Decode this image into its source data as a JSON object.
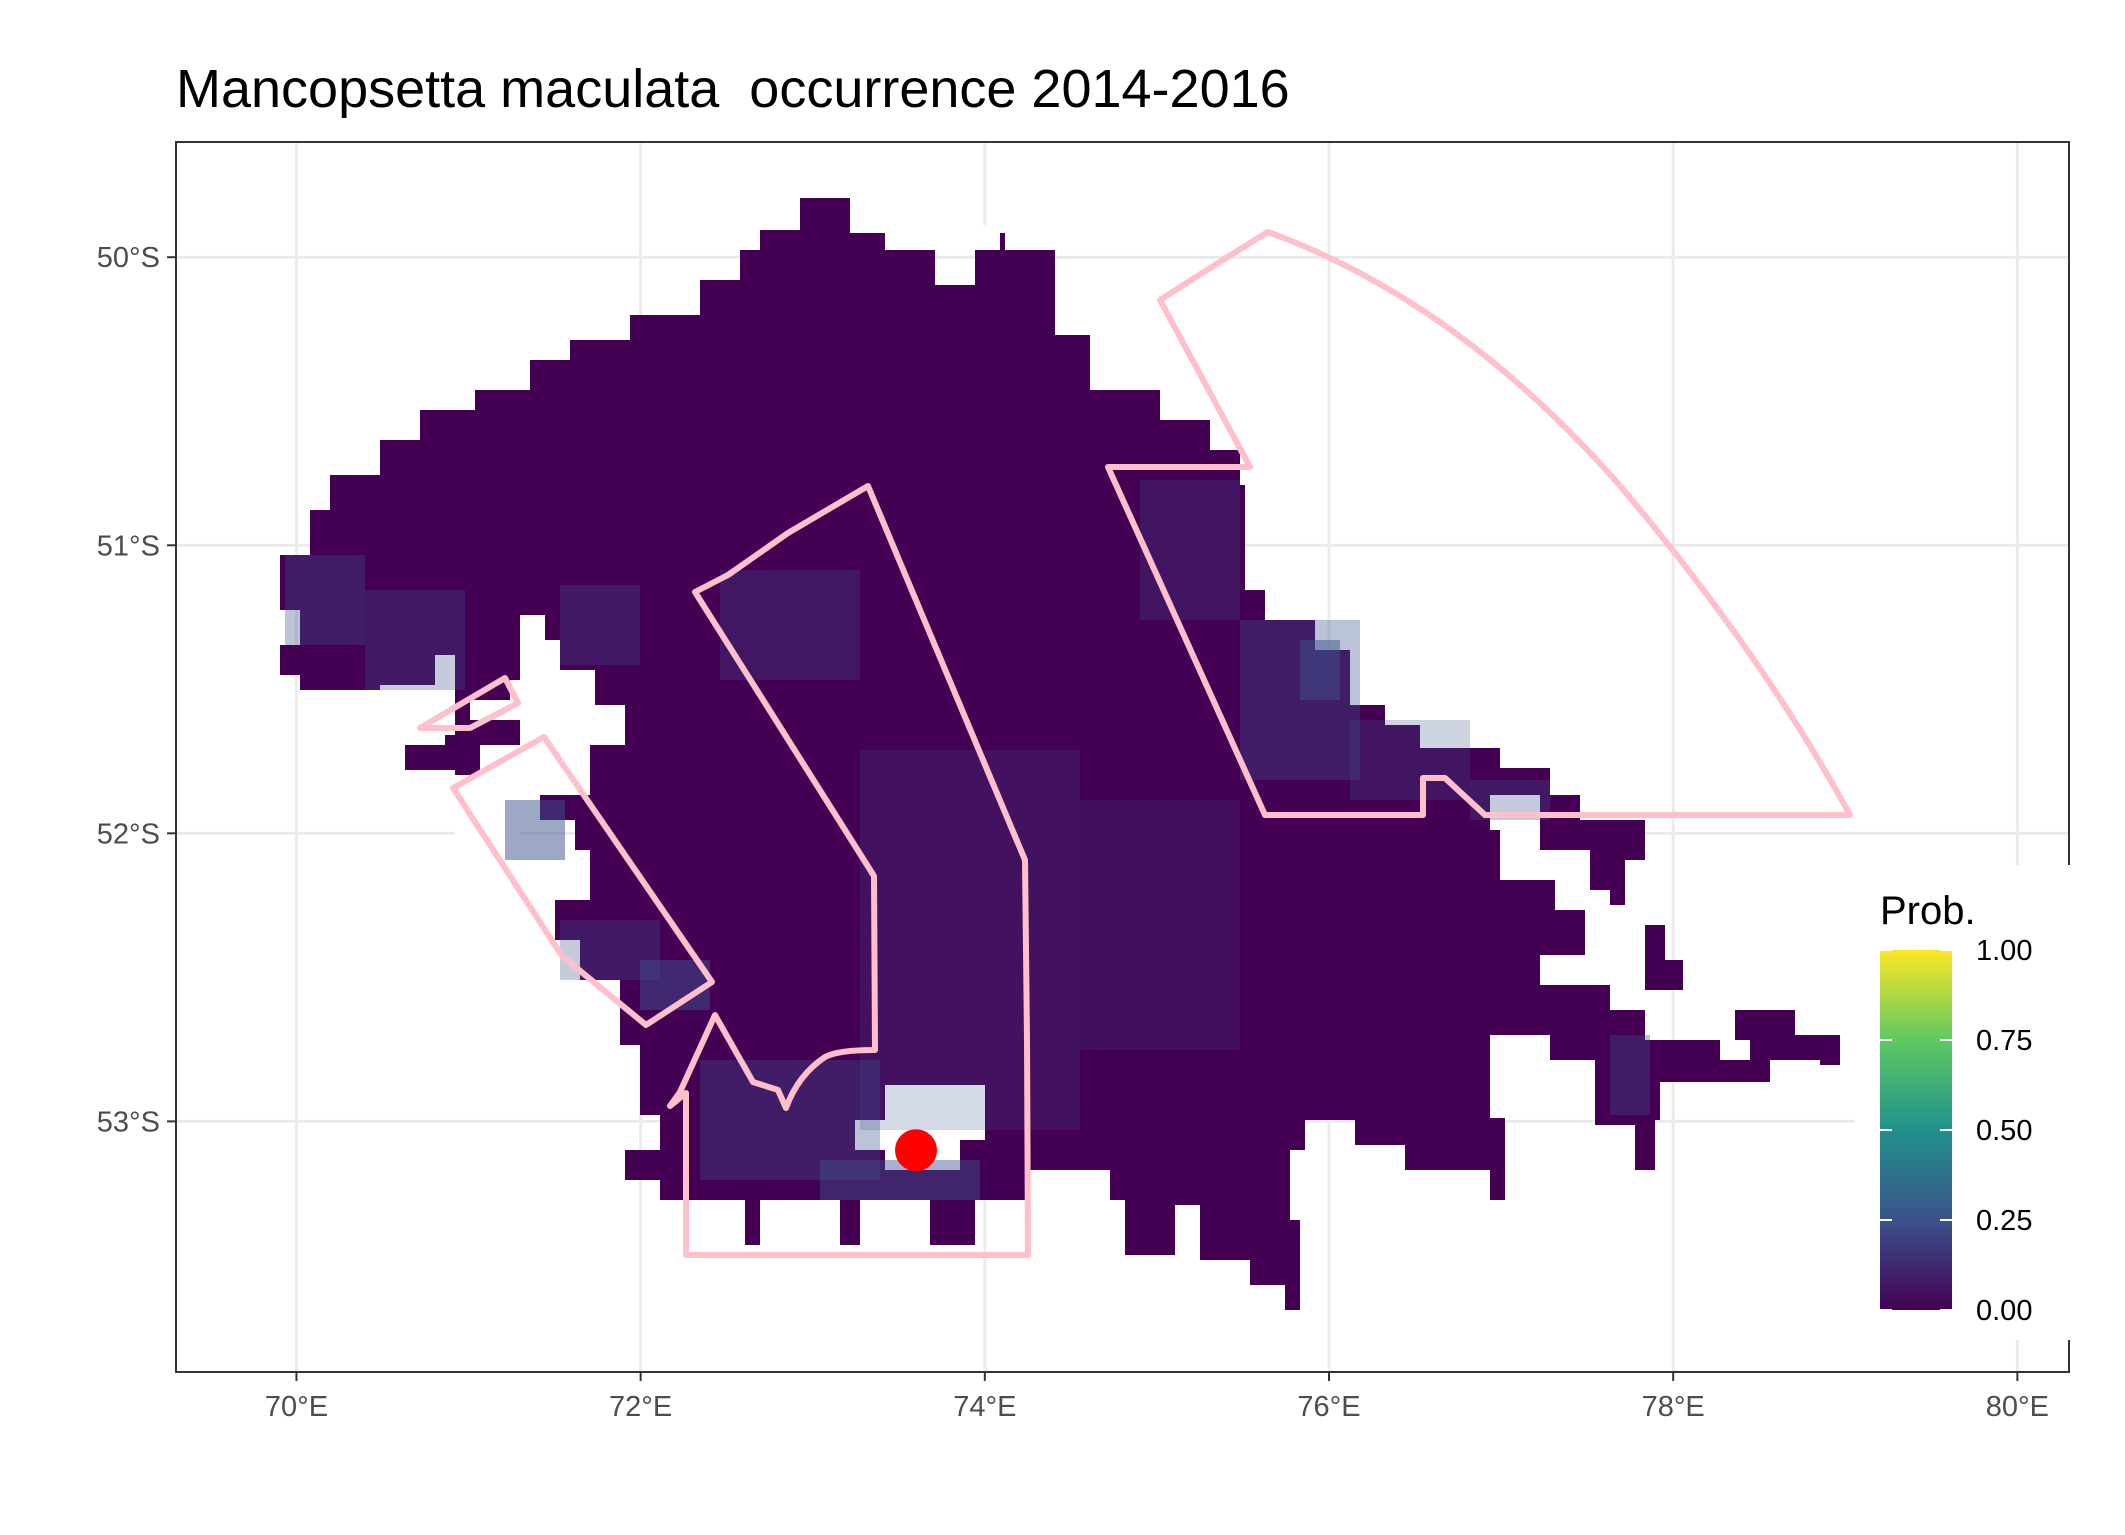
{
  "title": "Mancopsetta maculata  occurrence 2014-2016",
  "map": {
    "lon_range": [
      69.3,
      80.3
    ],
    "lat_range": [
      -53.87,
      -49.6
    ],
    "grid": true,
    "x_ticks": [
      {
        "value": 70,
        "label": "70°E"
      },
      {
        "value": 72,
        "label": "72°E"
      },
      {
        "value": 74,
        "label": "74°E"
      },
      {
        "value": 76,
        "label": "76°E"
      },
      {
        "value": 78,
        "label": "78°E"
      },
      {
        "value": 80,
        "label": "80°E"
      }
    ],
    "y_ticks": [
      {
        "value": -50,
        "label": "50°S"
      },
      {
        "value": -51,
        "label": "51°S"
      },
      {
        "value": -52,
        "label": "52°S"
      },
      {
        "value": -53,
        "label": "53°S"
      }
    ],
    "raster_fill_color": "#440154",
    "outline_color": "#ffc0cb",
    "point_color": "#ff0000",
    "occurrence_point": {
      "lon": 73.6,
      "lat": -53.1
    }
  },
  "legend": {
    "title": "Prob.",
    "position": "bottom-right",
    "colors": [
      "#440154",
      "#3b528b",
      "#21918c",
      "#5ec962",
      "#fde725"
    ],
    "labels": [
      "1.00",
      "0.75",
      "0.50",
      "0.25",
      "0.00"
    ]
  }
}
